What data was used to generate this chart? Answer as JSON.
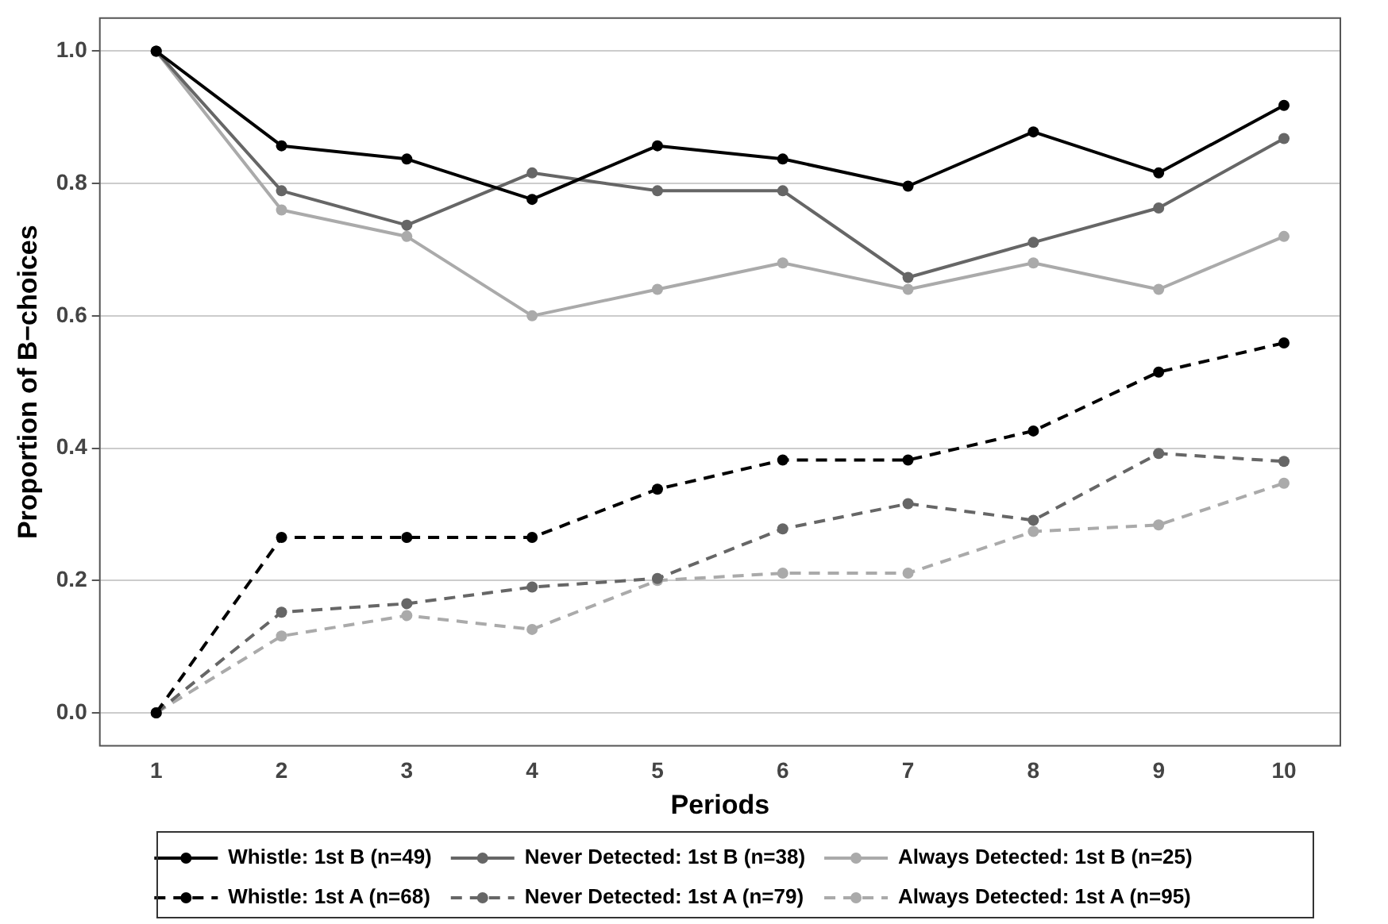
{
  "chart_data": {
    "type": "line",
    "xlabel": "Periods",
    "ylabel": "Proportion of B−choices",
    "x": [
      1,
      2,
      3,
      4,
      5,
      6,
      7,
      8,
      9,
      10
    ],
    "series": [
      {
        "name": "Whistle: 1st B (n=49)",
        "color": "#000000",
        "line_style": "solid",
        "values": [
          1,
          0.857,
          0.837,
          0.776,
          0.857,
          0.837,
          0.796,
          0.878,
          0.816,
          0.918
        ]
      },
      {
        "name": "Never Detected: 1st B (n=38)",
        "color": "#666666",
        "line_style": "solid",
        "values": [
          1,
          0.789,
          0.737,
          0.816,
          0.789,
          0.789,
          0.658,
          0.711,
          0.763,
          0.868
        ]
      },
      {
        "name": "Always Detected: 1st B (n=25)",
        "color": "#aaaaaa",
        "line_style": "solid",
        "values": [
          1,
          0.76,
          0.72,
          0.6,
          0.64,
          0.68,
          0.64,
          0.68,
          0.64,
          0.72
        ]
      },
      {
        "name": "Whistle: 1st A (n=68)",
        "color": "#000000",
        "line_style": "dashed",
        "values": [
          0,
          0.265,
          0.265,
          0.265,
          0.338,
          0.382,
          0.382,
          0.426,
          0.515,
          0.559
        ]
      },
      {
        "name": "Never Detected: 1st A (n=79)",
        "color": "#666666",
        "line_style": "dashed",
        "values": [
          0,
          0.152,
          0.165,
          0.19,
          0.203,
          0.278,
          0.316,
          0.291,
          0.392,
          0.38
        ]
      },
      {
        "name": "Always Detected: 1st A (n=95)",
        "color": "#aaaaaa",
        "line_style": "dashed",
        "values": [
          0,
          0.116,
          0.147,
          0.126,
          0.2,
          0.211,
          0.211,
          0.274,
          0.284,
          0.347
        ]
      }
    ],
    "xlim": [
      0.55,
      10.45
    ],
    "xticks": [
      1,
      2,
      3,
      4,
      5,
      6,
      7,
      8,
      9,
      10
    ],
    "ylim": [
      -0.05,
      1.05
    ],
    "yticks": [
      {
        "value": 0,
        "label": "0.0"
      },
      {
        "value": 0.2,
        "label": "0.2"
      },
      {
        "value": 0.4,
        "label": "0.4"
      },
      {
        "value": 0.6,
        "label": "0.6"
      },
      {
        "value": 0.8,
        "label": "0.8"
      },
      {
        "value": 1,
        "label": "1.0"
      }
    ],
    "grid": "y",
    "legend": "bottom",
    "marker": "circle"
  }
}
